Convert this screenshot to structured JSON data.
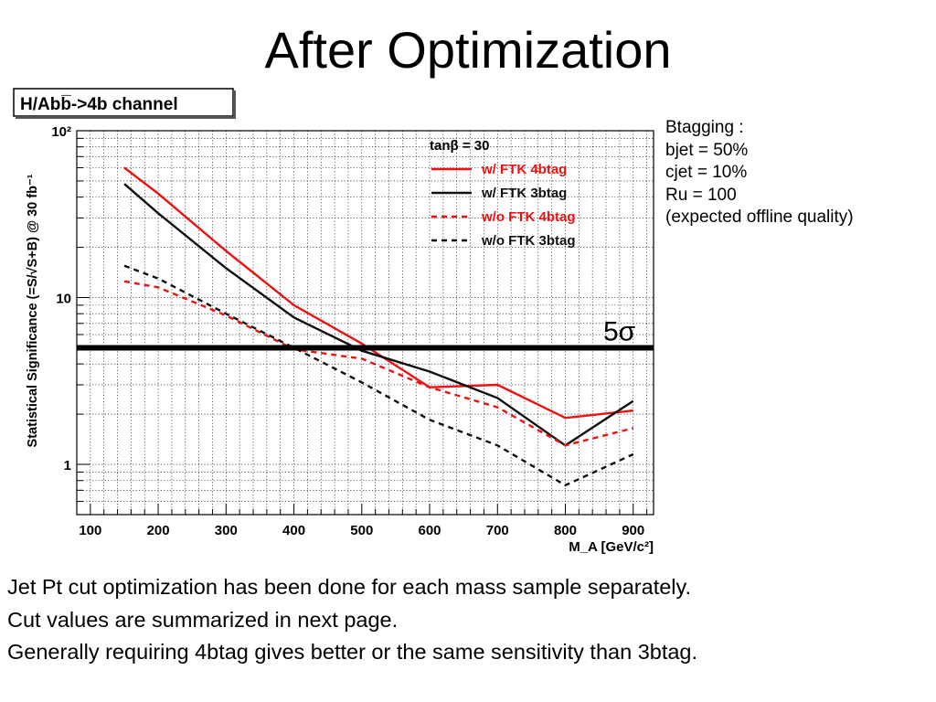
{
  "slide": {
    "title": "After Optimization",
    "footer_lines": [
      "Jet Pt cut optimization has been done for each mass sample separately.",
      "Cut values are summarized in next page.",
      "Generally requiring 4btag gives better or the same sensitivity than 3btag."
    ]
  },
  "btagging_note": {
    "lines": [
      "Btagging :",
      "bjet = 50%",
      "cjet = 10%",
      "Ru = 100",
      "(expected offline quality)"
    ]
  },
  "chart_data": {
    "type": "line",
    "title": "H/Abb̅->4b channel",
    "ylabel": "Statistical Significance (=S/√S+B) @ 30 fb⁻¹",
    "xlabel": "M_A [GeV/c²]",
    "yscale": "log",
    "ylim": [
      0.5,
      100
    ],
    "xlim": [
      80,
      930
    ],
    "xticks": [
      100,
      200,
      300,
      400,
      500,
      600,
      700,
      800,
      900
    ],
    "ytick_labels": [
      {
        "value": 100,
        "label": "10²"
      },
      {
        "value": 10,
        "label": "10"
      },
      {
        "value": 1,
        "label": "1"
      }
    ],
    "grid": true,
    "legend": {
      "header": "tanβ = 30",
      "placement": "top-right"
    },
    "series": [
      {
        "name": "w/ FTK 4btag",
        "color": "#ee1111",
        "dash": "solid",
        "x": [
          150,
          200,
          300,
          400,
          500,
          600,
          700,
          800,
          900
        ],
        "y": [
          60,
          42,
          19,
          9,
          5.3,
          2.9,
          3.0,
          1.9,
          2.1
        ]
      },
      {
        "name": "w/ FTK 3btag",
        "color": "#111111",
        "dash": "solid",
        "x": [
          150,
          200,
          300,
          400,
          500,
          600,
          700,
          800,
          900
        ],
        "y": [
          48,
          32,
          15,
          7.6,
          4.8,
          3.6,
          2.5,
          1.3,
          2.4
        ]
      },
      {
        "name": "w/o FTK 4btag",
        "color": "#ee1111",
        "dash": "dashed",
        "x": [
          150,
          200,
          300,
          400,
          500,
          600,
          700,
          800,
          900
        ],
        "y": [
          12.5,
          11.5,
          7.8,
          4.9,
          4.3,
          2.9,
          2.2,
          1.3,
          1.65
        ]
      },
      {
        "name": "w/o FTK 3btag",
        "color": "#111111",
        "dash": "dashed",
        "x": [
          150,
          200,
          300,
          400,
          500,
          600,
          700,
          800,
          900
        ],
        "y": [
          15.5,
          13,
          8,
          5,
          3.1,
          1.85,
          1.3,
          0.75,
          1.15
        ]
      }
    ],
    "threshold": {
      "value": 5,
      "label": "5σ"
    }
  }
}
